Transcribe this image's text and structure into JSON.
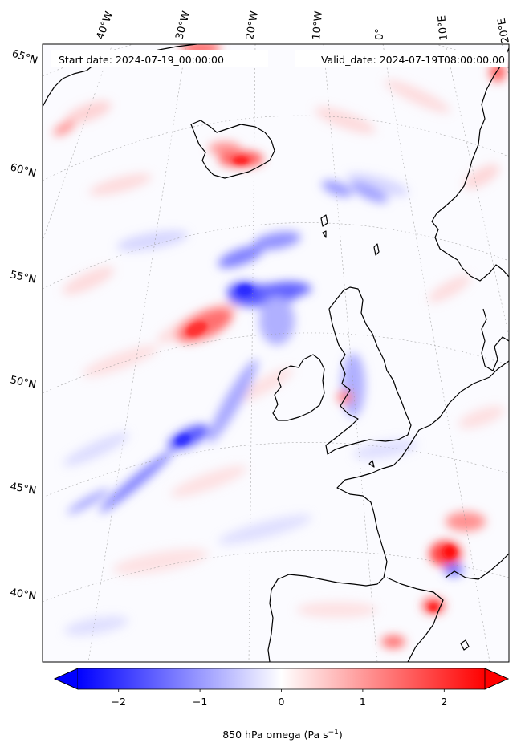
{
  "map": {
    "start_label": "Start date: 2024-07-19_00:00:00",
    "valid_label": "Valid_date: 2024-07-19T08:00:00.00",
    "lon_labels": [
      "40°W",
      "30°W",
      "20°W",
      "10°W",
      "0°",
      "10°E",
      "20°E"
    ],
    "lat_labels": [
      "65°N",
      "60°N",
      "55°N",
      "50°N",
      "45°N",
      "40°N"
    ],
    "field": "850 hPa omega",
    "colors": {
      "negative": "#0000ff",
      "zero": "#ffffff",
      "positive": "#ff0000",
      "coast": "#000000"
    }
  },
  "colorbar": {
    "label_main": "850 hPa omega (Pa s",
    "label_exp": "−1",
    "label_end": ")",
    "ticks": [
      {
        "value": -2,
        "text": "−2"
      },
      {
        "value": -1,
        "text": "−1"
      },
      {
        "value": 0,
        "text": "0"
      },
      {
        "value": 1,
        "text": "1"
      },
      {
        "value": 2,
        "text": "2"
      }
    ],
    "range": [
      -2.5,
      2.5
    ]
  }
}
